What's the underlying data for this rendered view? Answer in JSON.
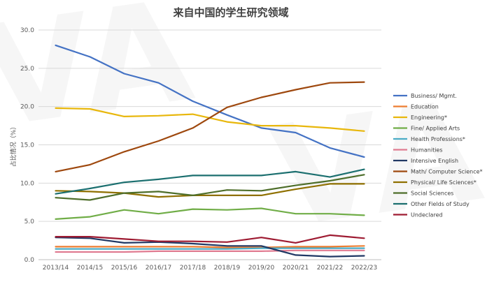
{
  "chart_data": {
    "type": "line",
    "title": "来自中国的学生研究领域",
    "xlabel": "",
    "ylabel": "占比情况（%）",
    "ylim": [
      0,
      30
    ],
    "yticks": [
      "0.0",
      "5.0",
      "10.0",
      "15.0",
      "20.0",
      "25.0",
      "30.0"
    ],
    "grid": "horizontal",
    "legend": "right",
    "categories": [
      "2013/14",
      "2014/15",
      "2015/16",
      "2016/17",
      "2017/18",
      "2018/19",
      "2019/20",
      "2020/21",
      "2021/22",
      "2022/23"
    ],
    "series": [
      {
        "name": "Business/ Mgmt.",
        "color": "#4472c4",
        "values": [
          28.0,
          26.5,
          24.3,
          23.1,
          20.7,
          18.9,
          17.2,
          16.6,
          14.6,
          13.4
        ]
      },
      {
        "name": "Education",
        "color": "#ed7d31",
        "values": [
          1.7,
          1.7,
          1.7,
          1.7,
          1.7,
          1.6,
          1.6,
          1.7,
          1.7,
          1.8
        ]
      },
      {
        "name": "Engineering*",
        "color": "#e8b70c",
        "values": [
          19.8,
          19.7,
          18.7,
          18.8,
          19.0,
          18.0,
          17.5,
          17.5,
          17.2,
          16.8
        ]
      },
      {
        "name": "Fine/ Applied Arts",
        "color": "#70ad47",
        "values": [
          5.3,
          5.6,
          6.5,
          6.0,
          6.6,
          6.5,
          6.7,
          6.0,
          6.0,
          5.8
        ]
      },
      {
        "name": "Health Professions*",
        "color": "#4bacc6",
        "values": [
          1.4,
          1.4,
          1.4,
          1.4,
          1.4,
          1.4,
          1.5,
          1.5,
          1.5,
          1.5
        ]
      },
      {
        "name": "Humanities",
        "color": "#e07b91",
        "values": [
          1.0,
          1.0,
          1.0,
          1.1,
          1.1,
          1.1,
          1.1,
          1.2,
          1.2,
          1.2
        ]
      },
      {
        "name": "Intensive English",
        "color": "#203864",
        "values": [
          2.9,
          2.8,
          2.2,
          2.3,
          2.1,
          1.8,
          1.8,
          0.6,
          0.4,
          0.5
        ]
      },
      {
        "name": "Math/ Computer Science*",
        "color": "#9e480e",
        "values": [
          11.5,
          12.4,
          14.1,
          15.5,
          17.2,
          19.9,
          21.2,
          22.2,
          23.1,
          23.2
        ]
      },
      {
        "name": "Physical/ Life Sciences*",
        "color": "#8f7000",
        "values": [
          9.0,
          8.9,
          8.7,
          8.2,
          8.4,
          8.4,
          8.4,
          9.2,
          9.9,
          9.9
        ]
      },
      {
        "name": "Social Sciences",
        "color": "#4e6e2a",
        "values": [
          8.1,
          7.8,
          8.7,
          8.9,
          8.4,
          9.1,
          9.0,
          9.7,
          10.3,
          11.1
        ]
      },
      {
        "name": "Other Fields of Study",
        "color": "#1b6f6f",
        "values": [
          8.6,
          9.3,
          10.1,
          10.5,
          11.0,
          11.0,
          11.0,
          11.5,
          10.8,
          11.8
        ]
      },
      {
        "name": "Undeclared",
        "color": "#9e1b32",
        "values": [
          3.0,
          3.0,
          2.7,
          2.4,
          2.4,
          2.3,
          2.9,
          2.2,
          3.2,
          2.8
        ]
      }
    ]
  },
  "watermark": {
    "text": "VA",
    "color": "#000000"
  }
}
